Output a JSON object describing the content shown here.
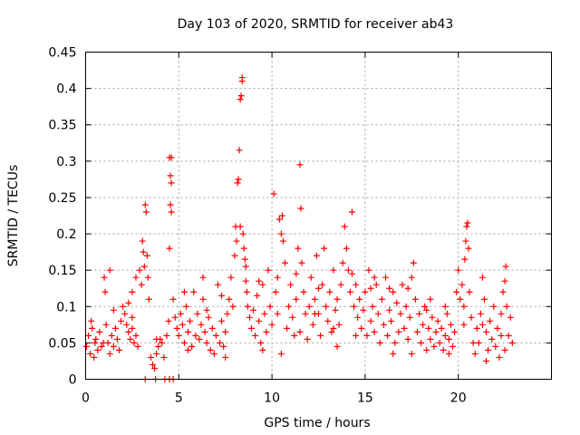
{
  "chart_data": {
    "type": "scatter",
    "title": "Day 103 of 2020, SRMTID for receiver ab43",
    "xlabel": "GPS time / hours",
    "ylabel": "SRMTID / TECUs",
    "xlim": [
      0,
      25
    ],
    "ylim": [
      0,
      0.45
    ],
    "x_ticks": [
      0,
      5,
      10,
      15,
      20
    ],
    "x_tick_labels": [
      "0",
      "5",
      "10",
      "15",
      "20"
    ],
    "y_ticks": [
      0,
      0.05,
      0.1,
      0.15,
      0.2,
      0.25,
      0.3,
      0.35,
      0.4,
      0.45
    ],
    "y_tick_labels": [
      "0",
      "0.05",
      "0.1",
      "0.15",
      "0.2",
      "0.25",
      "0.3",
      "0.35",
      "0.4",
      "0.45"
    ],
    "grid": true,
    "marker": "+",
    "color": "#ff0000",
    "series": [
      {
        "name": "ab43",
        "points": [
          [
            0.05,
            0.045
          ],
          [
            0.15,
            0.06
          ],
          [
            0.25,
            0.035
          ],
          [
            0.35,
            0.07
          ],
          [
            0.45,
            0.03
          ],
          [
            0.55,
            0.055
          ],
          [
            0.65,
            0.04
          ],
          [
            0.75,
            0.065
          ],
          [
            0.85,
            0.045
          ],
          [
            0.95,
            0.05
          ],
          [
            1.0,
            0.14
          ],
          [
            1.05,
            0.12
          ],
          [
            1.1,
            0.075
          ],
          [
            1.2,
            0.05
          ],
          [
            1.3,
            0.035
          ],
          [
            1.4,
            0.06
          ],
          [
            1.5,
            0.045
          ],
          [
            1.6,
            0.07
          ],
          [
            1.7,
            0.055
          ],
          [
            1.8,
            0.04
          ],
          [
            1.9,
            0.08
          ],
          [
            2.0,
            0.1
          ],
          [
            2.1,
            0.09
          ],
          [
            2.2,
            0.075
          ],
          [
            2.3,
            0.065
          ],
          [
            2.4,
            0.055
          ],
          [
            2.5,
            0.07
          ],
          [
            2.6,
            0.05
          ],
          [
            2.7,
            0.06
          ],
          [
            2.8,
            0.045
          ],
          [
            2.5,
            0.12
          ],
          [
            2.7,
            0.14
          ],
          [
            2.9,
            0.15
          ],
          [
            3.0,
            0.13
          ],
          [
            3.05,
            0.19
          ],
          [
            3.1,
            0.175
          ],
          [
            3.15,
            0.155
          ],
          [
            3.2,
            0.24
          ],
          [
            3.25,
            0.23
          ],
          [
            3.3,
            0.17
          ],
          [
            3.35,
            0.14
          ],
          [
            3.4,
            0.11
          ],
          [
            3.2,
            0.0
          ],
          [
            3.5,
            0.03
          ],
          [
            3.6,
            0.02
          ],
          [
            3.7,
            0.015
          ],
          [
            3.75,
            0.0
          ],
          [
            3.8,
            0.035
          ],
          [
            3.9,
            0.045
          ],
          [
            4.0,
            0.055
          ],
          [
            4.1,
            0.05
          ],
          [
            4.2,
            0.03
          ],
          [
            4.25,
            0.0
          ],
          [
            4.35,
            0.06
          ],
          [
            4.45,
            0.08
          ],
          [
            4.5,
            0.18
          ],
          [
            4.55,
            0.24
          ],
          [
            4.6,
            0.23
          ],
          [
            4.55,
            0.28
          ],
          [
            4.6,
            0.27
          ],
          [
            4.5,
            0.305
          ],
          [
            4.6,
            0.305
          ],
          [
            4.5,
            0.0
          ],
          [
            4.7,
            0.0
          ],
          [
            4.7,
            0.11
          ],
          [
            4.8,
            0.085
          ],
          [
            4.9,
            0.07
          ],
          [
            5.0,
            0.06
          ],
          [
            5.1,
            0.09
          ],
          [
            5.2,
            0.075
          ],
          [
            5.3,
            0.05
          ],
          [
            5.4,
            0.1
          ],
          [
            5.5,
            0.065
          ],
          [
            5.6,
            0.08
          ],
          [
            5.7,
            0.045
          ],
          [
            5.8,
            0.12
          ],
          [
            5.9,
            0.06
          ],
          [
            6.0,
            0.09
          ],
          [
            6.1,
            0.055
          ],
          [
            6.2,
            0.075
          ],
          [
            6.3,
            0.11
          ],
          [
            6.4,
            0.065
          ],
          [
            6.5,
            0.05
          ],
          [
            6.6,
            0.085
          ],
          [
            6.7,
            0.04
          ],
          [
            6.8,
            0.07
          ],
          [
            6.9,
            0.035
          ],
          [
            7.0,
            0.06
          ],
          [
            7.1,
            0.13
          ],
          [
            7.2,
            0.05
          ],
          [
            7.3,
            0.08
          ],
          [
            7.4,
            0.045
          ],
          [
            7.5,
            0.065
          ],
          [
            7.6,
            0.09
          ],
          [
            7.7,
            0.11
          ],
          [
            7.8,
            0.14
          ],
          [
            7.9,
            0.1
          ],
          [
            8.0,
            0.17
          ],
          [
            8.05,
            0.21
          ],
          [
            8.1,
            0.19
          ],
          [
            8.15,
            0.27
          ],
          [
            8.2,
            0.275
          ],
          [
            8.25,
            0.315
          ],
          [
            8.3,
            0.385
          ],
          [
            8.35,
            0.39
          ],
          [
            8.4,
            0.41
          ],
          [
            8.4,
            0.415
          ],
          [
            8.3,
            0.21
          ],
          [
            8.45,
            0.2
          ],
          [
            8.5,
            0.18
          ],
          [
            8.55,
            0.165
          ],
          [
            8.6,
            0.155
          ],
          [
            8.65,
            0.12
          ],
          [
            8.7,
            0.1
          ],
          [
            8.8,
            0.085
          ],
          [
            8.9,
            0.07
          ],
          [
            9.0,
            0.095
          ],
          [
            9.1,
            0.06
          ],
          [
            9.2,
            0.115
          ],
          [
            9.3,
            0.08
          ],
          [
            9.4,
            0.05
          ],
          [
            9.5,
            0.13
          ],
          [
            9.6,
            0.09
          ],
          [
            9.7,
            0.065
          ],
          [
            9.8,
            0.15
          ],
          [
            9.9,
            0.1
          ],
          [
            10.0,
            0.075
          ],
          [
            10.1,
            0.255
          ],
          [
            10.2,
            0.12
          ],
          [
            10.3,
            0.09
          ],
          [
            10.4,
            0.22
          ],
          [
            10.5,
            0.2
          ],
          [
            10.55,
            0.225
          ],
          [
            10.6,
            0.19
          ],
          [
            10.7,
            0.16
          ],
          [
            10.8,
            0.07
          ],
          [
            10.9,
            0.1
          ],
          [
            11.0,
            0.13
          ],
          [
            11.1,
            0.085
          ],
          [
            11.2,
            0.06
          ],
          [
            11.3,
            0.11
          ],
          [
            11.4,
            0.18
          ],
          [
            11.5,
            0.295
          ],
          [
            11.55,
            0.235
          ],
          [
            11.6,
            0.16
          ],
          [
            11.7,
            0.12
          ],
          [
            11.8,
            0.09
          ],
          [
            11.9,
            0.055
          ],
          [
            12.0,
            0.1
          ],
          [
            12.1,
            0.14
          ],
          [
            12.2,
            0.075
          ],
          [
            12.3,
            0.11
          ],
          [
            12.4,
            0.17
          ],
          [
            12.5,
            0.09
          ],
          [
            12.6,
            0.06
          ],
          [
            12.7,
            0.13
          ],
          [
            12.8,
            0.18
          ],
          [
            12.9,
            0.1
          ],
          [
            13.0,
            0.08
          ],
          [
            13.1,
            0.12
          ],
          [
            13.2,
            0.065
          ],
          [
            13.3,
            0.15
          ],
          [
            13.4,
            0.095
          ],
          [
            13.5,
            0.11
          ],
          [
            13.6,
            0.075
          ],
          [
            13.7,
            0.13
          ],
          [
            13.8,
            0.16
          ],
          [
            13.9,
            0.21
          ],
          [
            14.0,
            0.18
          ],
          [
            14.1,
            0.15
          ],
          [
            14.2,
            0.12
          ],
          [
            14.3,
            0.23
          ],
          [
            14.4,
            0.1
          ],
          [
            14.5,
            0.13
          ],
          [
            14.6,
            0.085
          ],
          [
            14.7,
            0.11
          ],
          [
            14.8,
            0.07
          ],
          [
            14.9,
            0.095
          ],
          [
            15.0,
            0.12
          ],
          [
            15.1,
            0.06
          ],
          [
            15.2,
            0.15
          ],
          [
            15.3,
            0.08
          ],
          [
            15.4,
            0.1
          ],
          [
            15.5,
            0.065
          ],
          [
            15.6,
            0.13
          ],
          [
            15.7,
            0.09
          ],
          [
            15.8,
            0.05
          ],
          [
            15.9,
            0.11
          ],
          [
            16.0,
            0.075
          ],
          [
            16.1,
            0.14
          ],
          [
            16.2,
            0.06
          ],
          [
            16.3,
            0.095
          ],
          [
            16.4,
            0.08
          ],
          [
            16.5,
            0.12
          ],
          [
            16.6,
            0.05
          ],
          [
            16.7,
            0.105
          ],
          [
            16.8,
            0.065
          ],
          [
            16.9,
            0.09
          ],
          [
            17.0,
            0.13
          ],
          [
            17.1,
            0.07
          ],
          [
            17.2,
            0.1
          ],
          [
            17.3,
            0.055
          ],
          [
            17.4,
            0.085
          ],
          [
            17.5,
            0.14
          ],
          [
            17.6,
            0.16
          ],
          [
            17.7,
            0.11
          ],
          [
            17.8,
            0.065
          ],
          [
            17.9,
            0.09
          ],
          [
            18.0,
            0.05
          ],
          [
            18.1,
            0.075
          ],
          [
            18.2,
            0.1
          ],
          [
            18.3,
            0.04
          ],
          [
            18.4,
            0.07
          ],
          [
            18.5,
            0.055
          ],
          [
            18.6,
            0.085
          ],
          [
            18.7,
            0.045
          ],
          [
            18.8,
            0.065
          ],
          [
            18.9,
            0.08
          ],
          [
            19.0,
            0.05
          ],
          [
            19.1,
            0.07
          ],
          [
            19.2,
            0.04
          ],
          [
            19.3,
            0.06
          ],
          [
            19.4,
            0.09
          ],
          [
            19.5,
            0.055
          ],
          [
            19.6,
            0.075
          ],
          [
            19.7,
            0.045
          ],
          [
            19.8,
            0.065
          ],
          [
            19.9,
            0.12
          ],
          [
            20.0,
            0.15
          ],
          [
            20.1,
            0.11
          ],
          [
            20.2,
            0.13
          ],
          [
            20.3,
            0.1
          ],
          [
            20.35,
            0.165
          ],
          [
            20.4,
            0.19
          ],
          [
            20.45,
            0.21
          ],
          [
            20.5,
            0.215
          ],
          [
            20.55,
            0.18
          ],
          [
            20.6,
            0.12
          ],
          [
            20.7,
            0.085
          ],
          [
            20.8,
            0.05
          ],
          [
            20.9,
            0.035
          ],
          [
            21.0,
            0.07
          ],
          [
            21.1,
            0.05
          ],
          [
            21.2,
            0.09
          ],
          [
            21.3,
            0.14
          ],
          [
            21.4,
            0.11
          ],
          [
            21.5,
            0.065
          ],
          [
            21.6,
            0.04
          ],
          [
            21.7,
            0.08
          ],
          [
            21.8,
            0.055
          ],
          [
            21.9,
            0.1
          ],
          [
            22.0,
            0.045
          ],
          [
            22.1,
            0.07
          ],
          [
            22.2,
            0.03
          ],
          [
            22.3,
            0.09
          ],
          [
            22.4,
            0.12
          ],
          [
            22.5,
            0.135
          ],
          [
            22.55,
            0.155
          ],
          [
            22.6,
            0.1
          ],
          [
            22.7,
            0.06
          ],
          [
            22.8,
            0.085
          ],
          [
            22.9,
            0.05
          ],
          [
            0.5,
            0.05
          ],
          [
            1.5,
            0.095
          ],
          [
            2.5,
            0.085
          ],
          [
            5.5,
            0.04
          ],
          [
            6.5,
            0.095
          ],
          [
            7.5,
            0.03
          ],
          [
            9.5,
            0.04
          ],
          [
            10.5,
            0.035
          ],
          [
            11.5,
            0.065
          ],
          [
            12.5,
            0.125
          ],
          [
            13.5,
            0.045
          ],
          [
            14.5,
            0.06
          ],
          [
            15.5,
            0.14
          ],
          [
            16.5,
            0.035
          ],
          [
            17.5,
            0.035
          ],
          [
            18.5,
            0.11
          ],
          [
            19.5,
            0.035
          ],
          [
            21.5,
            0.025
          ],
          [
            22.5,
            0.04
          ],
          [
            0.3,
            0.08
          ],
          [
            1.3,
            0.15
          ],
          [
            2.3,
            0.105
          ],
          [
            3.8,
            0.055
          ],
          [
            5.3,
            0.12
          ],
          [
            6.3,
            0.14
          ],
          [
            7.3,
            0.115
          ],
          [
            8.6,
            0.135
          ],
          [
            9.3,
            0.135
          ],
          [
            10.3,
            0.14
          ],
          [
            11.3,
            0.145
          ],
          [
            12.3,
            0.09
          ],
          [
            13.3,
            0.07
          ],
          [
            14.3,
            0.145
          ],
          [
            15.3,
            0.125
          ],
          [
            16.3,
            0.125
          ],
          [
            17.3,
            0.125
          ],
          [
            18.3,
            0.095
          ],
          [
            19.3,
            0.1
          ],
          [
            20.3,
            0.075
          ],
          [
            21.3,
            0.075
          ],
          [
            22.3,
            0.06
          ]
        ]
      }
    ]
  }
}
